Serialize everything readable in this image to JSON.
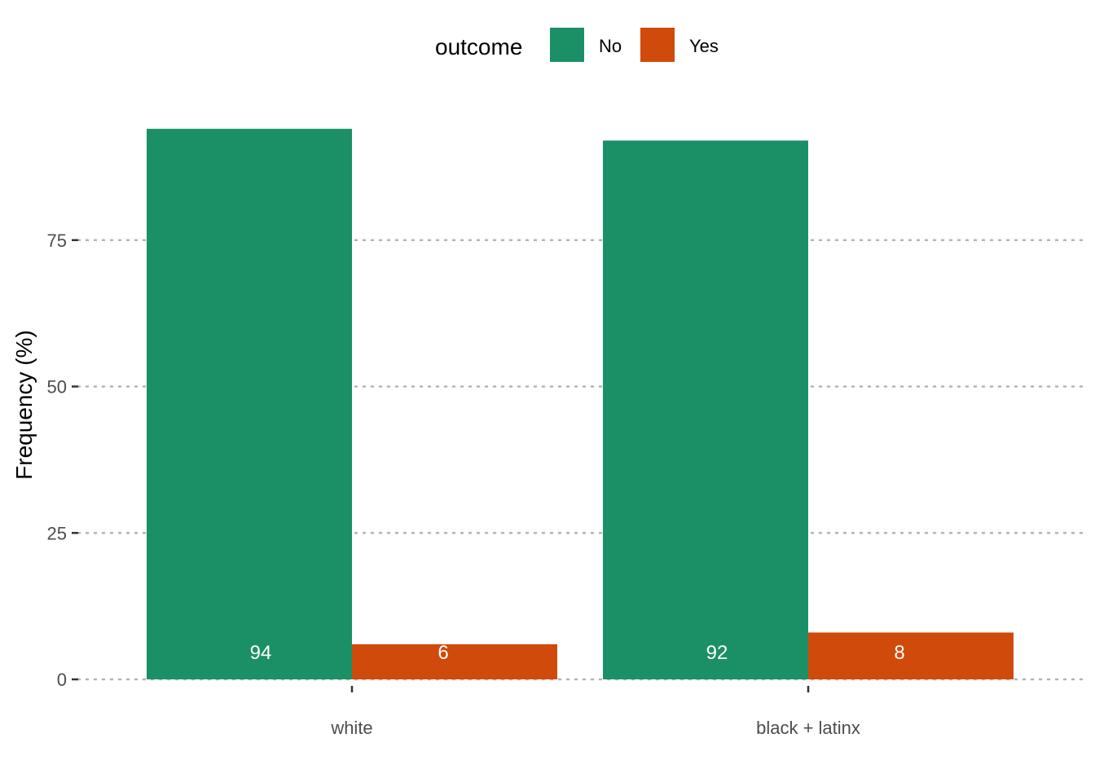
{
  "chart_data": {
    "type": "bar",
    "categories": [
      "white",
      "black + latinx"
    ],
    "series": [
      {
        "name": "No",
        "values": [
          94,
          92
        ],
        "color": "#1b9066"
      },
      {
        "name": "Yes",
        "values": [
          6,
          8
        ],
        "color": "#d04a0b"
      }
    ],
    "data_labels": [
      [
        "94",
        "92"
      ],
      [
        "6",
        "8"
      ]
    ],
    "ylabel": "Frequency (%)",
    "xlabel": "",
    "yticks": [
      0,
      25,
      50,
      75
    ],
    "ylim": [
      0,
      94
    ],
    "grid": "horizontal dotted",
    "legend": {
      "title": "outcome",
      "position": "top"
    }
  }
}
